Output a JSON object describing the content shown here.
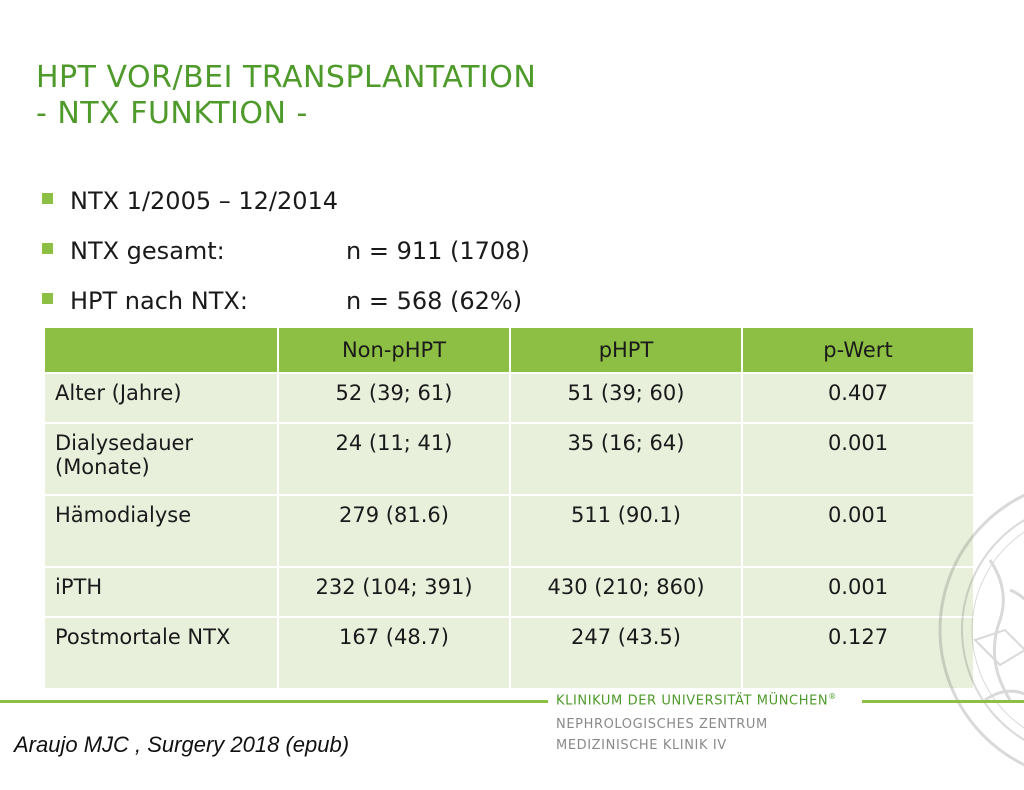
{
  "slide": {
    "title_line1": "HPT VOR/BEI TRANSPLANTATION",
    "title_line2": "- NTX FUNKTION -",
    "bullets": [
      {
        "label": "NTX 1/2005 – 12/2014",
        "value": ""
      },
      {
        "label": "NTX gesamt:",
        "value": "n = 911 (1708)"
      },
      {
        "label": "HPT nach NTX:",
        "value": "n = 568 (62%)"
      }
    ],
    "table": {
      "headers": [
        "",
        "Non-pHPT",
        "pHPT",
        "p-Wert"
      ],
      "rows": [
        {
          "label": "Alter (Jahre)",
          "non_phpt": "52 (39; 61)",
          "phpt": "51 (39; 60)",
          "p": "0.407"
        },
        {
          "label": "Dialysedauer (Monate)",
          "non_phpt": "24 (11; 41)",
          "phpt": "35 (16; 64)",
          "p": "0.001"
        },
        {
          "label": "Hämodialyse",
          "non_phpt": "279 (81.6)",
          "phpt": "511 (90.1)",
          "p": "0.001"
        },
        {
          "label": "iPTH",
          "non_phpt": "232 (104; 391)",
          "phpt": "430 (210; 860)",
          "p": "0.001"
        },
        {
          "label": "Postmortale NTX",
          "non_phpt": "167 (48.7)",
          "phpt": "247 (43.5)",
          "p": "0.127"
        }
      ]
    },
    "citation": "Araujo MJC , Surgery 2018 (epub)"
  },
  "footer": {
    "clinic_name": "KLINIKUM DER UNIVERSITÄT MÜNCHEN",
    "registered_mark": "®",
    "department1": "NEPHROLOGISCHES ZENTRUM",
    "department2": "MEDIZINISCHE KLINIK IV"
  },
  "colors": {
    "accent_green": "#4e9a2a",
    "header_green": "#8cbf44",
    "row_bg": "#e8f0dc"
  },
  "icons": {
    "bullet": "green-square-bullet",
    "seal": "university-seal-watermark"
  }
}
